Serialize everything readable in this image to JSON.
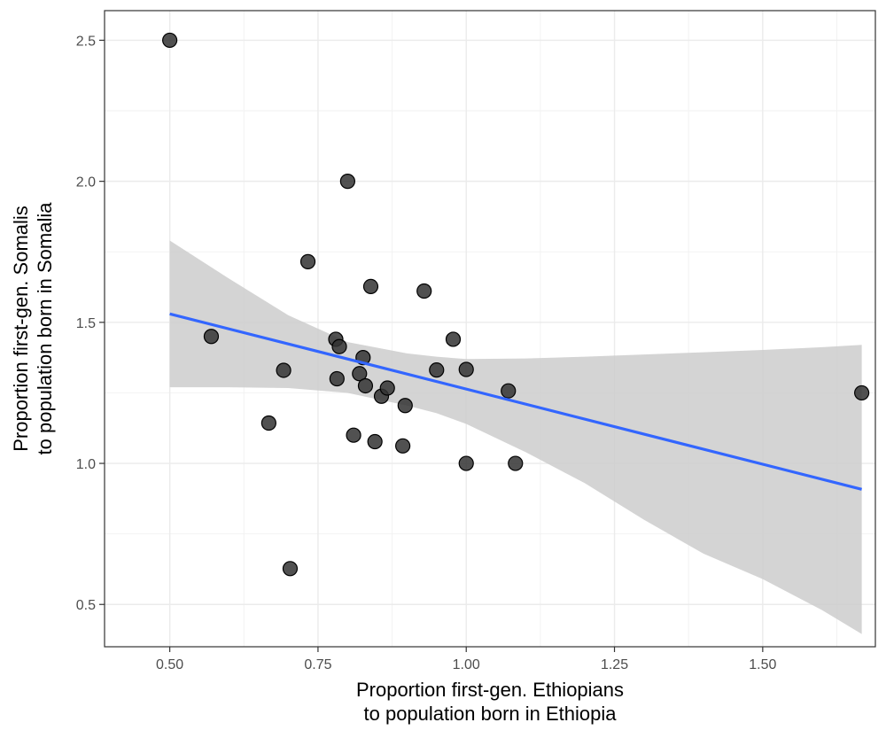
{
  "chart_data": {
    "type": "scatter",
    "title": "",
    "xlabel": [
      "Proportion first-gen. Ethiopians",
      "to population born in Ethiopia"
    ],
    "ylabel": [
      "Proportion first-gen. Somalis",
      "to population born in Somalia"
    ],
    "xlim": [
      0.39,
      1.69
    ],
    "ylim": [
      0.35,
      2.605
    ],
    "x_ticks": [
      0.5,
      0.75,
      1.0,
      1.25,
      1.5
    ],
    "x_tick_labels": [
      "0.50",
      "0.75",
      "1.00",
      "1.25",
      "1.50"
    ],
    "y_ticks": [
      0.5,
      1.0,
      1.5,
      2.0,
      2.5
    ],
    "y_tick_labels": [
      "0.5",
      "1.0",
      "1.5",
      "2.0",
      "2.5"
    ],
    "grid": true,
    "points": [
      {
        "x": 0.5,
        "y": 2.5
      },
      {
        "x": 0.57,
        "y": 1.45
      },
      {
        "x": 0.667,
        "y": 1.143
      },
      {
        "x": 0.692,
        "y": 1.33
      },
      {
        "x": 0.703,
        "y": 0.627
      },
      {
        "x": 0.733,
        "y": 1.715
      },
      {
        "x": 0.78,
        "y": 1.44
      },
      {
        "x": 0.786,
        "y": 1.414
      },
      {
        "x": 0.782,
        "y": 1.3
      },
      {
        "x": 0.8,
        "y": 2.0
      },
      {
        "x": 0.81,
        "y": 1.1
      },
      {
        "x": 0.82,
        "y": 1.318
      },
      {
        "x": 0.826,
        "y": 1.375
      },
      {
        "x": 0.83,
        "y": 1.275
      },
      {
        "x": 0.839,
        "y": 1.627
      },
      {
        "x": 0.846,
        "y": 1.077
      },
      {
        "x": 0.857,
        "y": 1.238
      },
      {
        "x": 0.867,
        "y": 1.267
      },
      {
        "x": 0.893,
        "y": 1.062
      },
      {
        "x": 0.897,
        "y": 1.205
      },
      {
        "x": 0.929,
        "y": 1.611
      },
      {
        "x": 0.95,
        "y": 1.331
      },
      {
        "x": 0.978,
        "y": 1.44
      },
      {
        "x": 1.0,
        "y": 1.333
      },
      {
        "x": 1.0,
        "y": 1.0
      },
      {
        "x": 1.071,
        "y": 1.257
      },
      {
        "x": 1.083,
        "y": 1.0
      },
      {
        "x": 1.667,
        "y": 1.25
      }
    ],
    "fit_line": {
      "method": "lm",
      "color": "#3366FF",
      "x": [
        0.5,
        1.667
      ],
      "y": [
        1.53,
        0.908
      ]
    },
    "confidence_band": {
      "color": "#cccccc",
      "x": [
        0.5,
        0.6,
        0.7,
        0.8,
        0.9,
        0.95,
        1.0,
        1.1,
        1.2,
        1.3,
        1.4,
        1.5,
        1.6,
        1.667
      ],
      "upper": [
        1.79,
        1.655,
        1.525,
        1.43,
        1.39,
        1.378,
        1.37,
        1.372,
        1.378,
        1.386,
        1.394,
        1.402,
        1.412,
        1.42
      ],
      "lower": [
        1.27,
        1.27,
        1.267,
        1.25,
        1.205,
        1.178,
        1.14,
        1.04,
        0.93,
        0.8,
        0.68,
        0.59,
        0.48,
        0.395
      ]
    },
    "point_fill": "#333333",
    "point_stroke": "#000000"
  }
}
